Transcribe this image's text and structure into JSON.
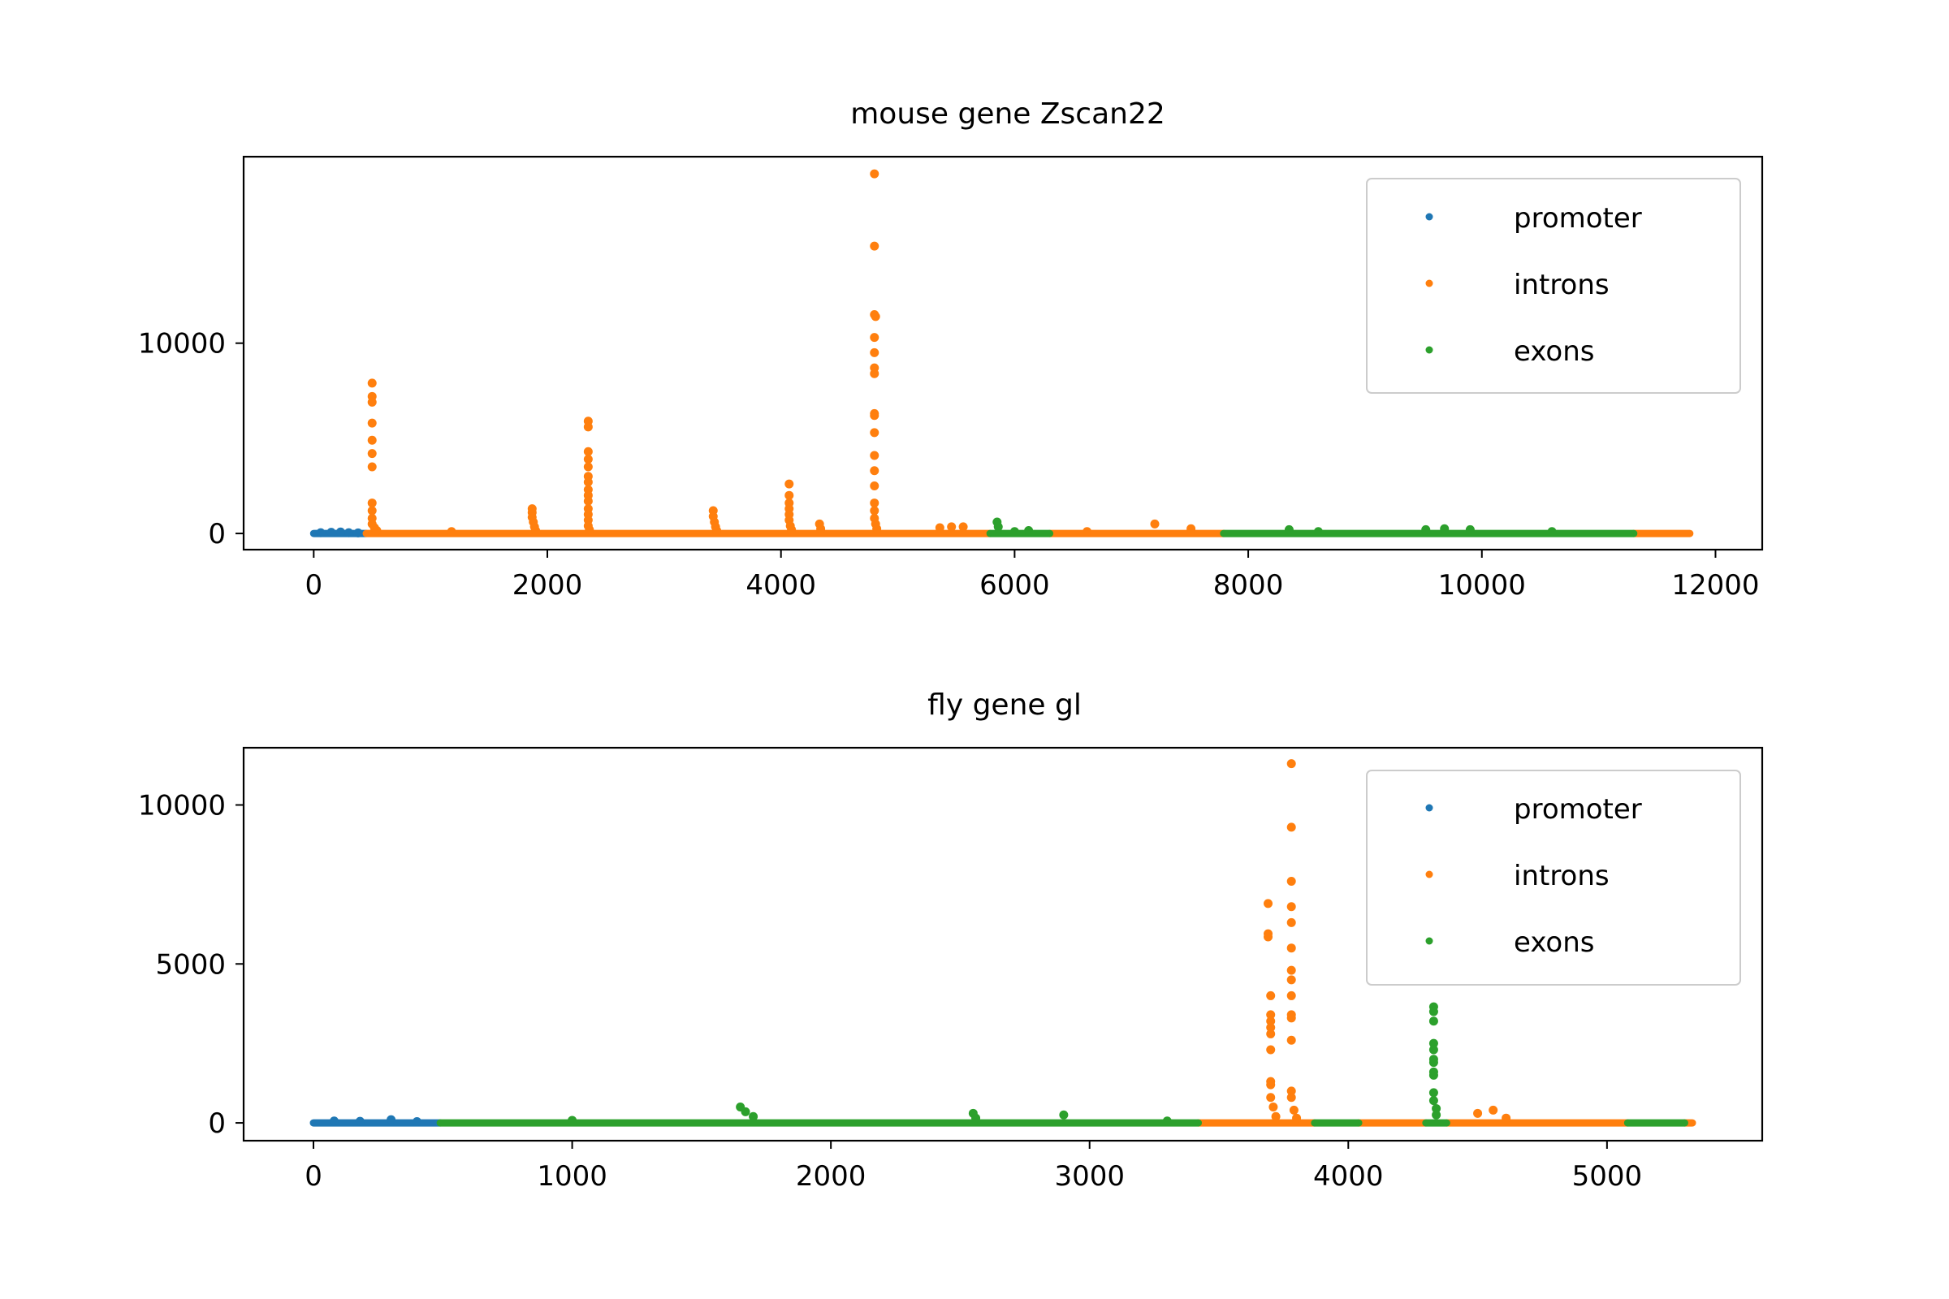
{
  "colors": {
    "promoter": "#1f77b4",
    "introns": "#ff7f0e",
    "exons": "#2ca02c",
    "axes": "#000000",
    "background": "#ffffff"
  },
  "chart_data": [
    {
      "type": "scatter",
      "title": "mouse gene Zscan22",
      "xlabel": "",
      "ylabel": "",
      "xlim": [
        -600,
        12400
      ],
      "ylim": [
        -850,
        19800
      ],
      "xticks": [
        0,
        2000,
        4000,
        6000,
        8000,
        10000,
        12000
      ],
      "xtick_labels": [
        "0",
        "2000",
        "4000",
        "6000",
        "8000",
        "10000",
        "12000"
      ],
      "yticks": [
        0,
        10000
      ],
      "ytick_labels": [
        "0",
        "10000"
      ],
      "grid": false,
      "legend": {
        "position": "upper right",
        "entries": [
          "promoter",
          "introns",
          "exons"
        ]
      },
      "series": [
        {
          "name": "promoter",
          "color": "#1f77b4",
          "segments": [
            [
              0,
              450
            ]
          ],
          "points": [
            [
              60,
              40
            ],
            [
              150,
              60
            ],
            [
              230,
              80
            ],
            [
              300,
              40
            ],
            [
              380,
              30
            ]
          ]
        },
        {
          "name": "introns",
          "color": "#ff7f0e",
          "segments": [
            [
              450,
              5790
            ],
            [
              6300,
              7790
            ],
            [
              11300,
              11780
            ]
          ],
          "points": [
            [
              500,
              7900
            ],
            [
              500,
              7200
            ],
            [
              500,
              6900
            ],
            [
              500,
              5800
            ],
            [
              500,
              4900
            ],
            [
              500,
              4200
            ],
            [
              500,
              3500
            ],
            [
              500,
              1600
            ],
            [
              500,
              1200
            ],
            [
              500,
              800
            ],
            [
              500,
              500
            ],
            [
              520,
              300
            ],
            [
              540,
              150
            ],
            [
              1180,
              100
            ],
            [
              1870,
              1300
            ],
            [
              1870,
              1100
            ],
            [
              1870,
              850
            ],
            [
              1880,
              600
            ],
            [
              1890,
              350
            ],
            [
              1900,
              150
            ],
            [
              2350,
              5900
            ],
            [
              2350,
              5600
            ],
            [
              2350,
              4300
            ],
            [
              2350,
              3900
            ],
            [
              2350,
              3500
            ],
            [
              2350,
              3000
            ],
            [
              2350,
              2700
            ],
            [
              2350,
              2300
            ],
            [
              2350,
              2000
            ],
            [
              2350,
              1700
            ],
            [
              2350,
              1300
            ],
            [
              2350,
              1000
            ],
            [
              2350,
              700
            ],
            [
              2350,
              400
            ],
            [
              2360,
              200
            ],
            [
              3420,
              1200
            ],
            [
              3420,
              900
            ],
            [
              3430,
              600
            ],
            [
              3440,
              350
            ],
            [
              3450,
              150
            ],
            [
              4070,
              2600
            ],
            [
              4070,
              2000
            ],
            [
              4070,
              1600
            ],
            [
              4070,
              1300
            ],
            [
              4070,
              1000
            ],
            [
              4070,
              700
            ],
            [
              4080,
              400
            ],
            [
              4090,
              200
            ],
            [
              4330,
              500
            ],
            [
              4340,
              250
            ],
            [
              4800,
              18900
            ],
            [
              4800,
              15100
            ],
            [
              4800,
              11500
            ],
            [
              4810,
              11400
            ],
            [
              4800,
              10300
            ],
            [
              4800,
              9500
            ],
            [
              4800,
              8700
            ],
            [
              4800,
              8400
            ],
            [
              4800,
              6300
            ],
            [
              4800,
              6200
            ],
            [
              4800,
              5300
            ],
            [
              4800,
              4100
            ],
            [
              4800,
              3300
            ],
            [
              4800,
              2500
            ],
            [
              4800,
              1600
            ],
            [
              4800,
              1200
            ],
            [
              4800,
              800
            ],
            [
              4810,
              500
            ],
            [
              4820,
              250
            ],
            [
              5360,
              300
            ],
            [
              5460,
              350
            ],
            [
              5560,
              350
            ],
            [
              7200,
              500
            ],
            [
              7510,
              250
            ],
            [
              6620,
              100
            ]
          ]
        },
        {
          "name": "exons",
          "color": "#2ca02c",
          "segments": [
            [
              5790,
              6300
            ],
            [
              7790,
              11300
            ]
          ],
          "points": [
            [
              5850,
              600
            ],
            [
              5860,
              350
            ],
            [
              6000,
              100
            ],
            [
              6120,
              150
            ],
            [
              8350,
              200
            ],
            [
              8600,
              100
            ],
            [
              9520,
              200
            ],
            [
              9680,
              250
            ],
            [
              9900,
              200
            ],
            [
              10600,
              100
            ]
          ]
        }
      ]
    },
    {
      "type": "scatter",
      "title": "fly gene gl",
      "xlabel": "",
      "ylabel": "",
      "xlim": [
        -270,
        5600
      ],
      "ylim": [
        -560,
        11800
      ],
      "xticks": [
        0,
        1000,
        2000,
        3000,
        4000,
        5000
      ],
      "xtick_labels": [
        "0",
        "1000",
        "2000",
        "3000",
        "4000",
        "5000"
      ],
      "yticks": [
        0,
        5000,
        10000
      ],
      "ytick_labels": [
        "0",
        "5000",
        "10000"
      ],
      "grid": false,
      "legend": {
        "position": "upper right",
        "entries": [
          "promoter",
          "introns",
          "exons"
        ]
      },
      "series": [
        {
          "name": "promoter",
          "color": "#1f77b4",
          "segments": [
            [
              0,
              490
            ]
          ],
          "points": [
            [
              80,
              60
            ],
            [
              180,
              50
            ],
            [
              300,
              100
            ],
            [
              400,
              40
            ]
          ]
        },
        {
          "name": "introns",
          "color": "#ff7f0e",
          "segments": [
            [
              3420,
              3870
            ],
            [
              4040,
              4300
            ],
            [
              4380,
              5080
            ],
            [
              5300,
              5330
            ]
          ],
          "points": [
            [
              3690,
              6900
            ],
            [
              3690,
              5950
            ],
            [
              3690,
              5850
            ],
            [
              3700,
              4000
            ],
            [
              3700,
              3400
            ],
            [
              3700,
              3200
            ],
            [
              3700,
              3000
            ],
            [
              3700,
              2800
            ],
            [
              3700,
              2300
            ],
            [
              3700,
              1300
            ],
            [
              3700,
              1200
            ],
            [
              3700,
              800
            ],
            [
              3710,
              500
            ],
            [
              3720,
              200
            ],
            [
              3780,
              11300
            ],
            [
              3780,
              9300
            ],
            [
              3780,
              7600
            ],
            [
              3780,
              6800
            ],
            [
              3780,
              6300
            ],
            [
              3780,
              5500
            ],
            [
              3780,
              4800
            ],
            [
              3780,
              4500
            ],
            [
              3780,
              4000
            ],
            [
              3780,
              3400
            ],
            [
              3780,
              3300
            ],
            [
              3780,
              2600
            ],
            [
              3780,
              1000
            ],
            [
              3780,
              800
            ],
            [
              3790,
              400
            ],
            [
              3800,
              150
            ],
            [
              4500,
              300
            ],
            [
              4560,
              400
            ],
            [
              4610,
              150
            ]
          ]
        },
        {
          "name": "exons",
          "color": "#2ca02c",
          "segments": [
            [
              490,
              3420
            ],
            [
              3870,
              4040
            ],
            [
              4300,
              4380
            ],
            [
              5080,
              5300
            ]
          ],
          "points": [
            [
              1650,
              500
            ],
            [
              1670,
              350
            ],
            [
              1700,
              200
            ],
            [
              2550,
              300
            ],
            [
              2560,
              150
            ],
            [
              2900,
              250
            ],
            [
              1000,
              80
            ],
            [
              3300,
              60
            ],
            [
              4330,
              3650
            ],
            [
              4330,
              3500
            ],
            [
              4330,
              3200
            ],
            [
              4330,
              2500
            ],
            [
              4330,
              2300
            ],
            [
              4330,
              2000
            ],
            [
              4330,
              1900
            ],
            [
              4330,
              1600
            ],
            [
              4330,
              1500
            ],
            [
              4330,
              950
            ],
            [
              4330,
              700
            ],
            [
              4340,
              450
            ],
            [
              4340,
              250
            ]
          ]
        }
      ]
    }
  ]
}
